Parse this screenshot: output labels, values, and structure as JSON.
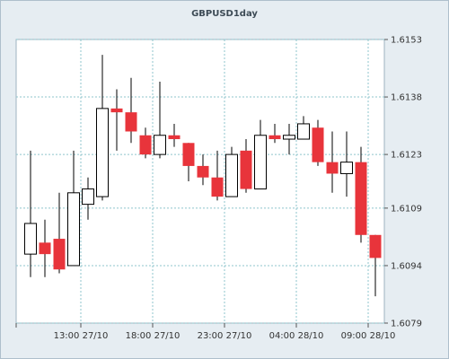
{
  "chart_data": {
    "type": "candlestick",
    "title": "GBPUSD1day",
    "xlabel": "",
    "ylabel": "",
    "ylim": [
      1.6079,
      1.6153
    ],
    "y_ticks": [
      "1.6153",
      "1.6138",
      "1.6123",
      "1.6109",
      "1.6094",
      "1.6079"
    ],
    "y_tick_values": [
      1.6153,
      1.6138,
      1.6123,
      1.6109,
      1.6094,
      1.6079
    ],
    "x_ticks": [
      {
        "index": 3.5,
        "label": "13:00 27/10"
      },
      {
        "index": 8.5,
        "label": "18:00 27/10"
      },
      {
        "index": 13.5,
        "label": "23:00 27/10"
      },
      {
        "index": 18.5,
        "label": "04:00 28/10"
      },
      {
        "index": 23.5,
        "label": "09:00 28/10"
      }
    ],
    "grid": true,
    "colors": {
      "up": "#ffffff",
      "down": "#e8343b",
      "outline": "#000000",
      "grid": "#8fc5cc"
    },
    "candles": [
      {
        "o": 1.6097,
        "h": 1.6124,
        "l": 1.6091,
        "c": 1.6105
      },
      {
        "o": 1.61,
        "h": 1.6106,
        "l": 1.6091,
        "c": 1.6097
      },
      {
        "o": 1.6101,
        "h": 1.6113,
        "l": 1.6092,
        "c": 1.6093
      },
      {
        "o": 1.6094,
        "h": 1.6124,
        "l": 1.6094,
        "c": 1.6113
      },
      {
        "o": 1.611,
        "h": 1.6117,
        "l": 1.6106,
        "c": 1.6114
      },
      {
        "o": 1.6112,
        "h": 1.6149,
        "l": 1.6111,
        "c": 1.6135
      },
      {
        "o": 1.6135,
        "h": 1.614,
        "l": 1.6124,
        "c": 1.6134
      },
      {
        "o": 1.6134,
        "h": 1.6143,
        "l": 1.6126,
        "c": 1.6129
      },
      {
        "o": 1.6128,
        "h": 1.613,
        "l": 1.6122,
        "c": 1.6123
      },
      {
        "o": 1.6123,
        "h": 1.6142,
        "l": 1.6122,
        "c": 1.6128
      },
      {
        "o": 1.6128,
        "h": 1.6131,
        "l": 1.6125,
        "c": 1.6127
      },
      {
        "o": 1.6126,
        "h": 1.6126,
        "l": 1.6116,
        "c": 1.612
      },
      {
        "o": 1.612,
        "h": 1.6123,
        "l": 1.6115,
        "c": 1.6117
      },
      {
        "o": 1.6117,
        "h": 1.6124,
        "l": 1.6111,
        "c": 1.6112
      },
      {
        "o": 1.6112,
        "h": 1.6125,
        "l": 1.6112,
        "c": 1.6123
      },
      {
        "o": 1.6124,
        "h": 1.6127,
        "l": 1.6113,
        "c": 1.6114
      },
      {
        "o": 1.6114,
        "h": 1.6132,
        "l": 1.6114,
        "c": 1.6128
      },
      {
        "o": 1.6128,
        "h": 1.6131,
        "l": 1.6126,
        "c": 1.6127
      },
      {
        "o": 1.6127,
        "h": 1.6131,
        "l": 1.6123,
        "c": 1.6128
      },
      {
        "o": 1.6127,
        "h": 1.6133,
        "l": 1.6127,
        "c": 1.6131
      },
      {
        "o": 1.613,
        "h": 1.6132,
        "l": 1.612,
        "c": 1.6121
      },
      {
        "o": 1.6121,
        "h": 1.6129,
        "l": 1.6113,
        "c": 1.6118
      },
      {
        "o": 1.6118,
        "h": 1.6129,
        "l": 1.6112,
        "c": 1.6121
      },
      {
        "o": 1.6121,
        "h": 1.6125,
        "l": 1.61,
        "c": 1.6102
      },
      {
        "o": 1.6102,
        "h": 1.6102,
        "l": 1.6086,
        "c": 1.6096
      }
    ]
  }
}
